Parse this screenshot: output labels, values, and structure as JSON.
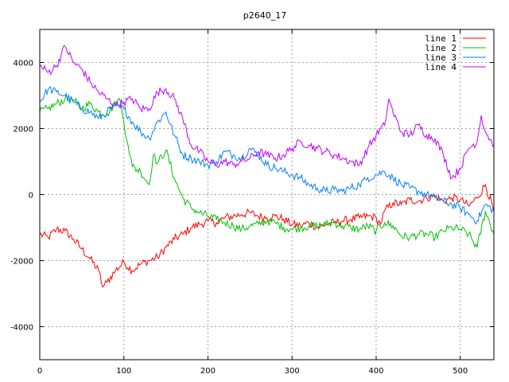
{
  "chart_data": {
    "type": "line",
    "title": "p2640_17",
    "xlabel": "",
    "ylabel": "",
    "xlim": [
      0,
      540
    ],
    "ylim": [
      -5000,
      5000
    ],
    "xticks": [
      0,
      100,
      200,
      300,
      400,
      500
    ],
    "yticks": [
      -4000,
      -2000,
      0,
      2000,
      4000
    ],
    "grid": true,
    "legend_position": "top-right",
    "series": [
      {
        "name": "line 1",
        "color": "#ff0000",
        "x": [
          0,
          10,
          20,
          30,
          40,
          50,
          60,
          70,
          75,
          80,
          90,
          100,
          110,
          120,
          130,
          140,
          150,
          160,
          170,
          180,
          190,
          200,
          210,
          220,
          230,
          240,
          250,
          260,
          270,
          280,
          290,
          300,
          310,
          320,
          330,
          340,
          350,
          360,
          370,
          380,
          390,
          400,
          405,
          410,
          420,
          430,
          440,
          450,
          460,
          470,
          480,
          490,
          500,
          510,
          520,
          530,
          540
        ],
        "y": [
          -1200,
          -1300,
          -1050,
          -1100,
          -1350,
          -1650,
          -1950,
          -2300,
          -2800,
          -2650,
          -2300,
          -2050,
          -2300,
          -2100,
          -2000,
          -1900,
          -1600,
          -1350,
          -1200,
          -1000,
          -900,
          -800,
          -850,
          -700,
          -650,
          -600,
          -550,
          -650,
          -700,
          -650,
          -750,
          -900,
          -950,
          -850,
          -1000,
          -900,
          -850,
          -800,
          -750,
          -700,
          -650,
          -700,
          -900,
          -500,
          -250,
          -300,
          -150,
          -200,
          -100,
          -50,
          -200,
          -100,
          -150,
          -350,
          -100,
          300,
          -500
        ]
      },
      {
        "name": "line 2",
        "color": "#00c000",
        "x": [
          0,
          10,
          20,
          30,
          40,
          50,
          60,
          70,
          80,
          90,
          95,
          100,
          105,
          110,
          120,
          130,
          135,
          140,
          150,
          160,
          170,
          180,
          190,
          200,
          210,
          220,
          230,
          240,
          250,
          260,
          270,
          280,
          290,
          300,
          310,
          320,
          330,
          340,
          350,
          360,
          370,
          380,
          390,
          400,
          410,
          420,
          430,
          440,
          450,
          460,
          470,
          480,
          490,
          500,
          510,
          520,
          530,
          540
        ],
        "y": [
          2500,
          2600,
          2750,
          2900,
          2850,
          2600,
          2750,
          2500,
          2450,
          2750,
          2900,
          2200,
          1500,
          850,
          700,
          300,
          1200,
          950,
          1350,
          500,
          -100,
          -400,
          -550,
          -650,
          -750,
          -850,
          -950,
          -1050,
          -950,
          -900,
          -800,
          -850,
          -1000,
          -1050,
          -1000,
          -950,
          -950,
          -900,
          -850,
          -950,
          -1000,
          -1050,
          -950,
          -1100,
          -850,
          -950,
          -1250,
          -1300,
          -1200,
          -1200,
          -1300,
          -1100,
          -1000,
          -1050,
          -1200,
          -1600,
          -500,
          -1200
        ]
      },
      {
        "name": "line 3",
        "color": "#0080ff",
        "x": [
          0,
          10,
          20,
          30,
          40,
          50,
          60,
          70,
          80,
          90,
          100,
          110,
          120,
          130,
          140,
          150,
          160,
          170,
          180,
          190,
          200,
          210,
          220,
          230,
          240,
          250,
          260,
          270,
          280,
          290,
          300,
          310,
          320,
          330,
          340,
          350,
          360,
          370,
          380,
          390,
          400,
          410,
          420,
          430,
          440,
          450,
          460,
          470,
          480,
          490,
          500,
          510,
          520,
          530,
          540
        ],
        "y": [
          2800,
          3200,
          3100,
          3000,
          2800,
          2600,
          2500,
          2300,
          2500,
          2700,
          2600,
          2200,
          1900,
          1700,
          2200,
          2500,
          1800,
          1200,
          1100,
          1000,
          900,
          1000,
          1300,
          1200,
          1100,
          1400,
          1200,
          900,
          800,
          700,
          600,
          500,
          300,
          200,
          100,
          150,
          100,
          200,
          300,
          500,
          600,
          700,
          500,
          300,
          200,
          100,
          0,
          -100,
          -200,
          -300,
          -400,
          -600,
          -800,
          -300,
          -500
        ]
      },
      {
        "name": "line 4",
        "color": "#c000ff",
        "x": [
          0,
          10,
          20,
          30,
          40,
          50,
          60,
          70,
          80,
          90,
          100,
          110,
          120,
          130,
          140,
          150,
          160,
          170,
          180,
          190,
          200,
          210,
          220,
          230,
          240,
          250,
          260,
          270,
          280,
          290,
          300,
          310,
          320,
          330,
          340,
          350,
          360,
          370,
          380,
          390,
          400,
          410,
          415,
          420,
          430,
          440,
          450,
          460,
          470,
          480,
          490,
          500,
          510,
          520,
          525,
          530,
          540
        ],
        "y": [
          3900,
          3700,
          3900,
          4500,
          4000,
          3800,
          3400,
          3100,
          2900,
          2700,
          2800,
          2900,
          2600,
          2600,
          3100,
          3200,
          2900,
          2300,
          1500,
          1300,
          1000,
          900,
          1000,
          900,
          1000,
          1100,
          1300,
          1200,
          1100,
          1200,
          1400,
          1600,
          1500,
          1400,
          1300,
          1200,
          1100,
          1000,
          900,
          1400,
          1800,
          2100,
          2900,
          2500,
          1900,
          1800,
          2100,
          1800,
          1700,
          1200,
          500,
          800,
          1400,
          1600,
          2400,
          1900,
          1500
        ]
      }
    ]
  }
}
